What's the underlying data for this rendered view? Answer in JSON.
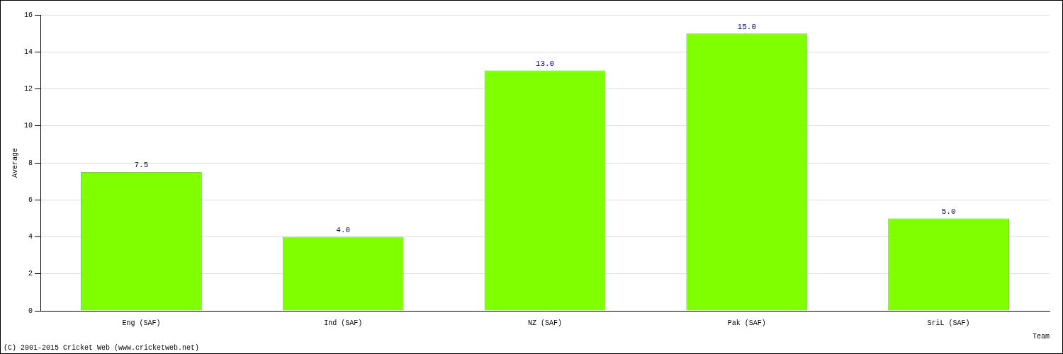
{
  "chart_data": {
    "type": "bar",
    "categories": [
      "Eng (SAF)",
      "Ind (SAF)",
      "NZ (SAF)",
      "Pak (SAF)",
      "SriL (SAF)"
    ],
    "values": [
      7.5,
      4.0,
      13.0,
      15.0,
      5.0
    ],
    "value_labels": [
      "7.5",
      "4.0",
      "13.0",
      "15.0",
      "5.0"
    ],
    "data_labels": true,
    "color": "#80ff00",
    "x_label": "Team",
    "y_label": "Average",
    "ylim": [
      0,
      16
    ],
    "yticks": [
      0,
      2,
      4,
      6,
      8,
      10,
      12,
      14,
      16
    ],
    "grid": true,
    "annotations": [
      "(C) 2001-2015 Cricket Web (www.cricketweb.net)"
    ]
  }
}
